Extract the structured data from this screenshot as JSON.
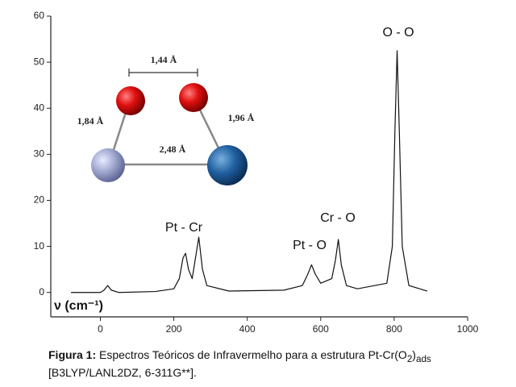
{
  "chart_data": {
    "type": "line",
    "x_label": "ν (cm⁻¹)",
    "x": [
      -80,
      0,
      10,
      20,
      30,
      50,
      150,
      200,
      215,
      225,
      232,
      240,
      250,
      258,
      268,
      278,
      290,
      350,
      500,
      550,
      565,
      575,
      585,
      600,
      630,
      640,
      648,
      656,
      670,
      700,
      780,
      795,
      802,
      808,
      814,
      822,
      840,
      890
    ],
    "series": [
      {
        "color": "#111111",
        "values": [
          0,
          0,
          0.5,
          1.5,
          0.5,
          0,
          0.2,
          0.8,
          3,
          7.5,
          8.5,
          5,
          3,
          7,
          12,
          5,
          1.5,
          0.3,
          0.5,
          1.5,
          4,
          6,
          4,
          2,
          3,
          7,
          11.5,
          6,
          1.5,
          0.8,
          2,
          10,
          35,
          52.5,
          35,
          10,
          1.5,
          0.3
        ]
      }
    ],
    "xlim": [
      -135,
      1000
    ],
    "xticks": [
      0,
      200,
      400,
      600,
      800,
      1000
    ],
    "ylim": [
      -5.3,
      60
    ],
    "yticks": [
      0,
      10,
      20,
      30,
      40,
      50,
      60
    ],
    "annotations": [
      "O - O",
      "Cr - O",
      "Pt - O",
      "Pt - Cr"
    ],
    "inset_labels": [
      "1,44 Å",
      "1,84 Å",
      "1,96 Å",
      "2,48 Å"
    ]
  },
  "caption": {
    "label": "Figura 1:",
    "parts": [
      " Espectros Teóricos de Infravermelho para a estrutura Pt-Cr(O",
      "2",
      ")",
      "ads",
      "  [B3LYP/LANL2DZ, 6-311G**]."
    ]
  }
}
